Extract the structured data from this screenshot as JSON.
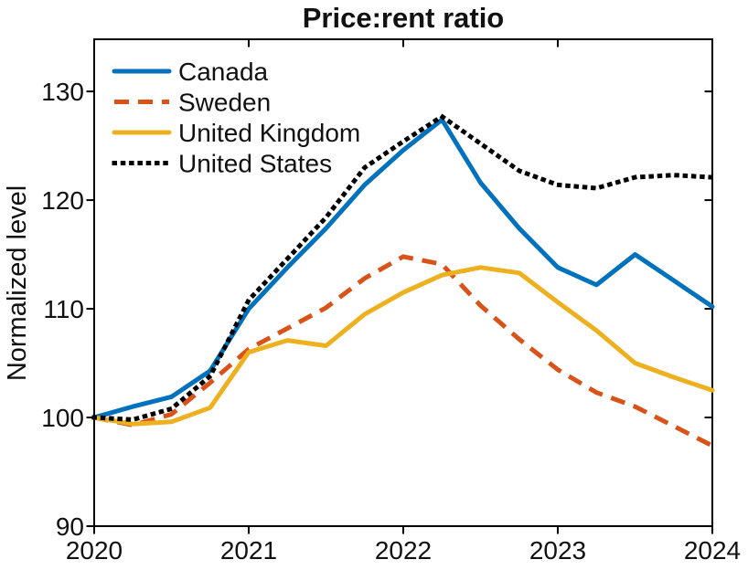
{
  "title": "Price:rent ratio",
  "ylabel": "Normalized level",
  "chart_data": {
    "type": "line",
    "title": "Price:rent ratio",
    "xlabel": "",
    "ylabel": "Normalized level",
    "xlim": [
      2020,
      2024
    ],
    "ylim": [
      90,
      134.8
    ],
    "grid": false,
    "legend_position": "top-left",
    "xticks": [
      2020,
      2021,
      2022,
      2023,
      2024
    ],
    "xtick_labels": [
      "2020",
      "2021",
      "2022",
      "2023",
      "2024"
    ],
    "yticks": [
      90,
      100,
      110,
      120,
      130
    ],
    "ytick_labels": [
      "90",
      "100",
      "110",
      "120",
      "130"
    ],
    "x": [
      2020,
      2020.25,
      2020.5,
      2020.75,
      2021,
      2021.25,
      2021.5,
      2021.75,
      2022,
      2022.25,
      2022.5,
      2022.75,
      2023,
      2023.25,
      2023.5,
      2023.75,
      2024
    ],
    "series": [
      {
        "name": "Canada",
        "color": "#0072BD",
        "style": "solid",
        "values": [
          100,
          101,
          101.9,
          104.3,
          110,
          113.8,
          117.4,
          121.4,
          124.6,
          127.4,
          121.6,
          117.4,
          113.8,
          112.2,
          115,
          112.6,
          110.2
        ]
      },
      {
        "name": "Sweden",
        "color": "#D95319",
        "style": "dashed",
        "values": [
          100,
          99.3,
          100.3,
          103.2,
          106.3,
          108.2,
          110.1,
          112.8,
          114.8,
          114.1,
          110.3,
          107.2,
          104.4,
          102.3,
          101,
          99.2,
          97.4
        ]
      },
      {
        "name": "United Kingdom",
        "color": "#EDB120",
        "style": "solid",
        "values": [
          100,
          99.4,
          99.6,
          100.9,
          106,
          107.1,
          106.6,
          109.5,
          111.5,
          113.1,
          113.8,
          113.3,
          110.6,
          108,
          105,
          103.7,
          102.5
        ]
      },
      {
        "name": "United States",
        "color": "#000000",
        "style": "dotted",
        "values": [
          100,
          99.8,
          100.8,
          103.8,
          110.8,
          114.6,
          118.4,
          123,
          125.4,
          127.7,
          125.2,
          122.7,
          121.4,
          121.1,
          122.1,
          122.3,
          122.1
        ]
      }
    ]
  }
}
